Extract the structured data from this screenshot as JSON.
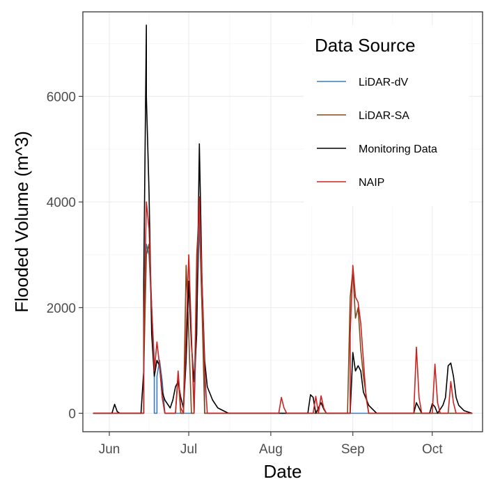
{
  "chart_data": {
    "type": "line",
    "xlabel": "Date",
    "ylabel": "Flooded Volume (m^3)",
    "x_ticks": [
      {
        "date": "06-01",
        "label": "Jun"
      },
      {
        "date": "07-01",
        "label": "Jul"
      },
      {
        "date": "08-01",
        "label": "Aug"
      },
      {
        "date": "09-01",
        "label": "Sep"
      },
      {
        "date": "10-01",
        "label": "Oct"
      }
    ],
    "y_ticks": [
      0,
      2000,
      4000,
      6000
    ],
    "xlim": [
      "05-22",
      "10-20"
    ],
    "ylim": [
      -350,
      7600
    ],
    "grid": true,
    "legend": {
      "title": "Data Source",
      "position": "top-right",
      "entries": [
        {
          "name": "LiDAR-dV",
          "color": "#3a7ab8"
        },
        {
          "name": "LiDAR-SA",
          "color": "#7a4a1a"
        },
        {
          "name": "Monitoring Data",
          "color": "#000000"
        },
        {
          "name": "NAIP",
          "color": "#cc2222"
        }
      ]
    },
    "series": [
      {
        "name": "LiDAR-dV",
        "color": "#3a7ab8",
        "points": [
          [
            "05-26",
            0
          ],
          [
            "06-14",
            0
          ],
          [
            "06-14",
            1500
          ],
          [
            "06-15",
            3200
          ],
          [
            "06-16",
            3000
          ],
          [
            "06-17",
            2000
          ],
          [
            "06-18",
            1000
          ],
          [
            "06-18",
            0
          ],
          [
            "06-19",
            0
          ],
          [
            "06-19",
            700
          ],
          [
            "06-20",
            1000
          ],
          [
            "06-21",
            600
          ],
          [
            "06-22",
            0
          ],
          [
            "07-03",
            0
          ],
          [
            "07-04",
            1800
          ],
          [
            "07-05",
            3600
          ],
          [
            "07-06",
            2000
          ],
          [
            "07-07",
            900
          ],
          [
            "07-07",
            0
          ],
          [
            "10-16",
            0
          ]
        ]
      },
      {
        "name": "LiDAR-SA",
        "color": "#7a4a1a",
        "points": [
          [
            "05-26",
            0
          ],
          [
            "06-14",
            0
          ],
          [
            "06-14",
            800
          ],
          [
            "06-15",
            3000
          ],
          [
            "06-16",
            3200
          ],
          [
            "06-17",
            2000
          ],
          [
            "06-18",
            800
          ],
          [
            "06-19",
            1000
          ],
          [
            "06-20",
            900
          ],
          [
            "06-21",
            300
          ],
          [
            "06-22",
            0
          ],
          [
            "06-26",
            0
          ],
          [
            "06-27",
            700
          ],
          [
            "06-28",
            0
          ],
          [
            "06-29",
            0
          ],
          [
            "06-30",
            2800
          ],
          [
            "07-01",
            1500
          ],
          [
            "07-02",
            0
          ],
          [
            "07-03",
            0
          ],
          [
            "07-04",
            3000
          ],
          [
            "07-05",
            3900
          ],
          [
            "07-06",
            2000
          ],
          [
            "07-07",
            0
          ],
          [
            "08-30",
            0
          ],
          [
            "08-31",
            2200
          ],
          [
            "09-01",
            2700
          ],
          [
            "09-02",
            1800
          ],
          [
            "09-03",
            2000
          ],
          [
            "09-04",
            1200
          ],
          [
            "09-05",
            700
          ],
          [
            "09-07",
            0
          ],
          [
            "10-16",
            0
          ]
        ]
      },
      {
        "name": "Monitoring Data",
        "color": "#000000",
        "points": [
          [
            "05-26",
            0
          ],
          [
            "06-02",
            0
          ],
          [
            "06-03",
            170
          ],
          [
            "06-04",
            30
          ],
          [
            "06-05",
            0
          ],
          [
            "06-13",
            0
          ],
          [
            "06-13",
            30
          ],
          [
            "06-14",
            800
          ],
          [
            "06-14",
            2500
          ],
          [
            "06-15",
            7350
          ],
          [
            "06-15",
            6000
          ],
          [
            "06-16",
            4200
          ],
          [
            "06-17",
            1500
          ],
          [
            "06-18",
            700
          ],
          [
            "06-19",
            1000
          ],
          [
            "06-20",
            900
          ],
          [
            "06-21",
            400
          ],
          [
            "06-22",
            250
          ],
          [
            "06-24",
            100
          ],
          [
            "06-25",
            250
          ],
          [
            "06-26",
            500
          ],
          [
            "06-27",
            600
          ],
          [
            "06-28",
            300
          ],
          [
            "06-29",
            100
          ],
          [
            "06-30",
            1000
          ],
          [
            "07-01",
            2500
          ],
          [
            "07-02",
            1300
          ],
          [
            "07-03",
            600
          ],
          [
            "07-04",
            1500
          ],
          [
            "07-05",
            5100
          ],
          [
            "07-06",
            2500
          ],
          [
            "07-07",
            1000
          ],
          [
            "07-08",
            500
          ],
          [
            "07-10",
            250
          ],
          [
            "07-12",
            100
          ],
          [
            "07-16",
            0
          ],
          [
            "08-15",
            0
          ],
          [
            "08-16",
            350
          ],
          [
            "08-17",
            300
          ],
          [
            "08-18",
            0
          ],
          [
            "08-19",
            100
          ],
          [
            "08-20",
            200
          ],
          [
            "08-21",
            80
          ],
          [
            "08-22",
            0
          ],
          [
            "08-31",
            0
          ],
          [
            "09-01",
            1150
          ],
          [
            "09-02",
            800
          ],
          [
            "09-03",
            900
          ],
          [
            "09-04",
            800
          ],
          [
            "09-05",
            400
          ],
          [
            "09-07",
            150
          ],
          [
            "09-09",
            50
          ],
          [
            "09-10",
            0
          ],
          [
            "09-24",
            0
          ],
          [
            "09-25",
            200
          ],
          [
            "09-26",
            100
          ],
          [
            "09-27",
            0
          ],
          [
            "09-30",
            0
          ],
          [
            "10-01",
            180
          ],
          [
            "10-02",
            120
          ],
          [
            "10-03",
            0
          ],
          [
            "10-05",
            150
          ],
          [
            "10-06",
            300
          ],
          [
            "10-07",
            900
          ],
          [
            "10-08",
            950
          ],
          [
            "10-09",
            700
          ],
          [
            "10-10",
            300
          ],
          [
            "10-11",
            150
          ],
          [
            "10-13",
            50
          ],
          [
            "10-16",
            0
          ]
        ]
      },
      {
        "name": "NAIP",
        "color": "#cc2222",
        "points": [
          [
            "05-26",
            0
          ],
          [
            "06-14",
            0
          ],
          [
            "06-14",
            1500
          ],
          [
            "06-15",
            4000
          ],
          [
            "06-16",
            3500
          ],
          [
            "06-17",
            2000
          ],
          [
            "06-18",
            800
          ],
          [
            "06-19",
            1350
          ],
          [
            "06-20",
            900
          ],
          [
            "06-21",
            300
          ],
          [
            "06-22",
            0
          ],
          [
            "06-26",
            0
          ],
          [
            "06-27",
            800
          ],
          [
            "06-28",
            100
          ],
          [
            "06-29",
            0
          ],
          [
            "06-30",
            1500
          ],
          [
            "07-01",
            3000
          ],
          [
            "07-02",
            1500
          ],
          [
            "07-03",
            0
          ],
          [
            "07-04",
            2500
          ],
          [
            "07-05",
            4100
          ],
          [
            "07-06",
            2500
          ],
          [
            "07-07",
            800
          ],
          [
            "07-08",
            0
          ],
          [
            "08-04",
            0
          ],
          [
            "08-05",
            300
          ],
          [
            "08-06",
            100
          ],
          [
            "08-07",
            0
          ],
          [
            "08-17",
            0
          ],
          [
            "08-18",
            320
          ],
          [
            "08-19",
            0
          ],
          [
            "08-20",
            330
          ],
          [
            "08-21",
            100
          ],
          [
            "08-22",
            0
          ],
          [
            "08-31",
            0
          ],
          [
            "08-31",
            1500
          ],
          [
            "09-01",
            2800
          ],
          [
            "09-02",
            2200
          ],
          [
            "09-03",
            2100
          ],
          [
            "09-04",
            1700
          ],
          [
            "09-05",
            1000
          ],
          [
            "09-06",
            300
          ],
          [
            "09-07",
            0
          ],
          [
            "09-24",
            0
          ],
          [
            "09-25",
            1250
          ],
          [
            "09-26",
            300
          ],
          [
            "09-27",
            0
          ],
          [
            "10-01",
            0
          ],
          [
            "10-02",
            930
          ],
          [
            "10-03",
            200
          ],
          [
            "10-04",
            0
          ],
          [
            "10-07",
            0
          ],
          [
            "10-08",
            600
          ],
          [
            "10-09",
            200
          ],
          [
            "10-10",
            0
          ],
          [
            "10-16",
            0
          ]
        ]
      }
    ]
  }
}
